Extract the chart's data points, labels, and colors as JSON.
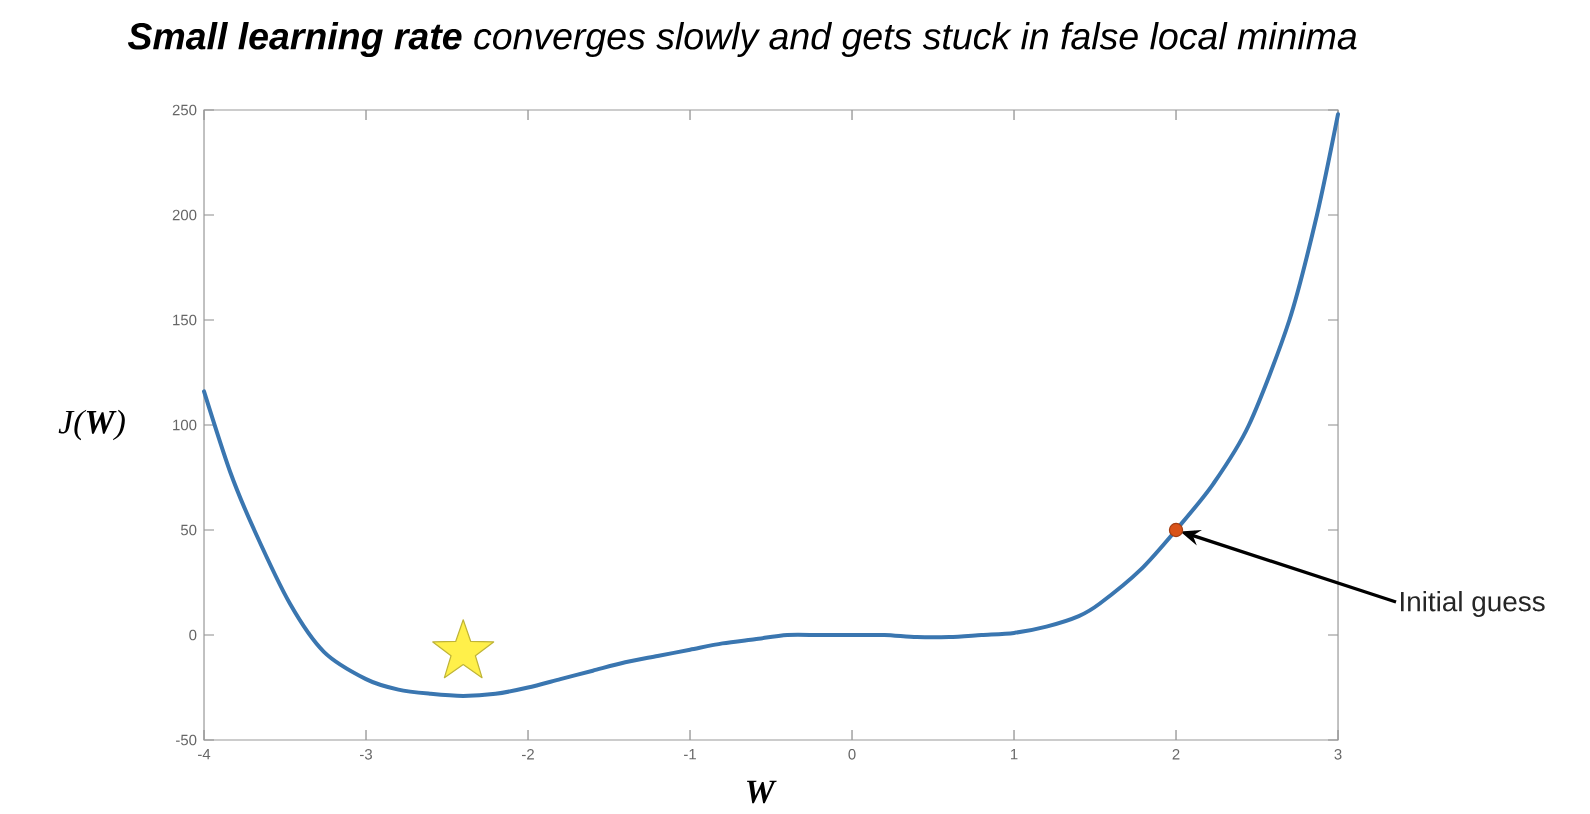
{
  "chart_data": {
    "type": "line",
    "title": "**Small learning rate** converges slowly and gets stuck in false local minima",
    "xlabel": "W",
    "ylabel": "J(**W**)",
    "xlim": [
      -4,
      3
    ],
    "ylim": [
      -50,
      250
    ],
    "xticks": [
      -4,
      -3,
      -2,
      -1,
      0,
      1,
      2,
      3
    ],
    "yticks": [
      -50,
      0,
      50,
      100,
      150,
      200,
      250
    ],
    "series": [
      {
        "color": "#3a76b0",
        "marker": "none",
        "line_style": "solid",
        "x": [
          -4,
          -3.84,
          -3.69,
          -3.47,
          -3.26,
          -3,
          -2.8,
          -2.6,
          -2.4,
          -2.2,
          -2,
          -1.8,
          -1.6,
          -1.4,
          -1.2,
          -1,
          -0.8,
          -0.6,
          -0.4,
          -0.2,
          0,
          0.2,
          0.4,
          0.6,
          0.8,
          1,
          1.2,
          1.4,
          1.53,
          1.78,
          2,
          2.23,
          2.45,
          2.7,
          2.87,
          3
        ],
        "values": [
          116,
          78,
          50,
          15,
          -8,
          -21,
          -26,
          -28,
          -29,
          -28,
          -25,
          -21,
          -17,
          -13,
          -10,
          -7,
          -4,
          -2,
          0,
          0,
          0,
          0,
          -1,
          -1,
          0,
          1,
          4,
          9,
          15,
          31,
          50,
          72,
          100,
          150,
          200,
          248
        ]
      },
      {
        "type": "scatter",
        "color": "#d95319",
        "marker": "circle",
        "x": [
          2
        ],
        "values": [
          50
        ]
      },
      {
        "type": "scatter",
        "color": "#fff04a",
        "marker": "star",
        "x": [
          -2.4
        ],
        "values": [
          -8
        ]
      }
    ],
    "annotations": [
      {
        "text": "Initial guess",
        "x": 2,
        "y": 50
      }
    ]
  }
}
